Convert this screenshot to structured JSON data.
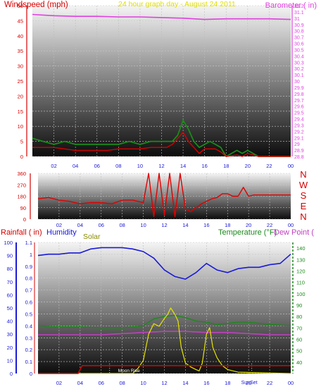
{
  "header": {
    "left": "Windspeed (mph)",
    "center": "24 hour graph day - August 24 2011",
    "right": "Barometer ( in)"
  },
  "colors": {
    "wind": "#d80000",
    "gust_bars": "#1a8a1a",
    "baro": "#e040e0",
    "dir": "#e00000",
    "humidity": "#1a1ad8",
    "solar": "#e6e600",
    "temp": "#1a8a1a",
    "dewpoint": "#c040c0",
    "rain": "#d80000",
    "rain_axis": "#1a1ad8",
    "time_labels": "#1a1ad8"
  },
  "chart_data": [
    {
      "id": "wind_baro",
      "type": "line",
      "title": "24 hour graph day - August 24 2011",
      "x_ticks": [
        "02",
        "04",
        "06",
        "08",
        "10",
        "12",
        "14",
        "16",
        "18",
        "20",
        "22",
        "00"
      ],
      "y_left": {
        "label": "Windspeed (mph)",
        "ticks": [
          0,
          5,
          10,
          15,
          20,
          25,
          30,
          35,
          40,
          45,
          50
        ],
        "lim": [
          0,
          50
        ]
      },
      "y_right": {
        "label": "Barometer ( in)",
        "ticks": [
          "28.8",
          "28.9",
          "29",
          "29.1",
          "29.2",
          "29.3",
          "29.4",
          "29.5",
          "29.6",
          "29.7",
          "29.8",
          "29.9",
          "30",
          "30.1",
          "30.2",
          "30.3",
          "30.4",
          "30.5",
          "30.6",
          "30.7",
          "30.8",
          "30.9",
          "31",
          "31.1",
          "31.2"
        ],
        "lim": [
          28.8,
          31.2
        ]
      },
      "series": [
        {
          "name": "Windspeed",
          "axis": "left",
          "x": [
            0,
            1,
            2,
            3,
            4,
            5,
            6,
            7,
            8,
            9,
            10,
            11,
            12,
            12.5,
            13,
            13.5,
            14,
            14.5,
            15,
            15.5,
            16,
            17,
            17.5,
            18,
            19,
            19.5,
            20,
            21,
            22,
            23,
            24
          ],
          "y": [
            3,
            3,
            3,
            2.5,
            2,
            2,
            2,
            2,
            2.5,
            2.5,
            2.5,
            3,
            3,
            3,
            4,
            6,
            8,
            5,
            3,
            1,
            2.5,
            2.5,
            1.5,
            0,
            0.5,
            0,
            1,
            0,
            0,
            0,
            0
          ]
        },
        {
          "name": "Gust",
          "axis": "left",
          "x": [
            0,
            1,
            2,
            3,
            4,
            5,
            6,
            7,
            8,
            9,
            10,
            11,
            12,
            13,
            13.5,
            14,
            14.5,
            15,
            15.5,
            16,
            16.5,
            17,
            17.5,
            18,
            19,
            19.5,
            20,
            21,
            22,
            23,
            24
          ],
          "y": [
            6,
            5,
            4,
            5,
            4,
            4,
            4,
            4,
            4,
            5,
            4,
            5,
            5,
            5,
            7,
            12,
            9,
            5,
            3,
            4,
            5,
            4,
            3,
            0,
            2,
            1,
            2,
            0,
            0,
            0,
            0
          ]
        },
        {
          "name": "Barometer",
          "axis": "right",
          "x": [
            0,
            2,
            4,
            6,
            8,
            10,
            12,
            14,
            16,
            18,
            20,
            22,
            24
          ],
          "y": [
            31.06,
            31.04,
            31.03,
            31.03,
            31.02,
            31.02,
            31.01,
            31.0,
            30.98,
            30.99,
            30.99,
            30.99,
            30.98
          ]
        }
      ]
    },
    {
      "id": "wind_direction",
      "type": "line",
      "x_ticks": [
        "02",
        "04",
        "06",
        "08",
        "10",
        "12",
        "14",
        "16",
        "18",
        "20",
        "22",
        "00"
      ],
      "y": {
        "ticks": [
          0,
          90,
          180,
          270,
          360
        ],
        "lim": [
          0,
          360
        ]
      },
      "compass": [
        "N",
        "W",
        "S",
        "E",
        "N"
      ],
      "series": [
        {
          "name": "Wind direction",
          "x": [
            0,
            1,
            2,
            3,
            4,
            5,
            6,
            7,
            8,
            9,
            10,
            10.5,
            11,
            11.5,
            12,
            12.5,
            13,
            13.5,
            14,
            14.5,
            15,
            15.5,
            16,
            16.5,
            17,
            17.5,
            18,
            18.5,
            19,
            19.5,
            20,
            20.5,
            21,
            22,
            23,
            24
          ],
          "y": [
            160,
            170,
            150,
            140,
            120,
            130,
            130,
            120,
            150,
            150,
            130,
            360,
            20,
            360,
            30,
            360,
            20,
            360,
            80,
            60,
            90,
            120,
            140,
            160,
            170,
            200,
            200,
            180,
            180,
            250,
            180,
            190,
            190,
            190,
            190,
            190
          ]
        }
      ]
    },
    {
      "id": "rain_hum_solar_temp",
      "type": "line",
      "x_ticks": [
        "02",
        "04",
        "06",
        "08",
        "10",
        "12",
        "14",
        "16",
        "18",
        "20",
        "22",
        "00"
      ],
      "y_rain": {
        "label": "Rainfall ( in)",
        "ticks": [
          0,
          10,
          20,
          30,
          40,
          50,
          60,
          70,
          80,
          90,
          100
        ],
        "lim": [
          0,
          100
        ]
      },
      "y_humidity": {
        "label": "Humidity",
        "ticks": [
          "0",
          "0.1",
          "0.2",
          "0.3",
          "0.4",
          "0.5",
          "0.6",
          "0.7",
          "0.8",
          "0.9",
          "1",
          "1.1"
        ],
        "lim": [
          0,
          1.1
        ]
      },
      "y_temp": {
        "label": "Temperature (°F)",
        "ticks": [
          40,
          50,
          60,
          70,
          80,
          90,
          100,
          110,
          120,
          130,
          140
        ],
        "lim": [
          30,
          145
        ]
      },
      "labels": {
        "solar": "Solar",
        "dewpoint": "Dew Point (",
        "moonrise": "Moon Rise",
        "sunset": "SunSet"
      },
      "annotations_x": {
        "moonrise": 6.8,
        "sunset": 20.3
      },
      "series": [
        {
          "name": "Humidity",
          "axis": "rain",
          "x": [
            0,
            1,
            2,
            3,
            4,
            5,
            6,
            7,
            8,
            9,
            10,
            11,
            12,
            13,
            14,
            15,
            16,
            17,
            18,
            19,
            20,
            21,
            22,
            23,
            24
          ],
          "y": [
            90,
            91,
            91,
            92,
            92,
            95,
            96,
            96,
            96,
            95,
            93,
            88,
            79,
            74,
            72,
            77,
            84,
            79,
            77,
            80,
            81,
            81,
            83,
            84,
            91
          ]
        },
        {
          "name": "Temperature",
          "axis": "temp",
          "x": [
            0,
            2,
            4,
            6,
            8,
            10,
            10.5,
            11,
            12,
            13,
            14,
            15,
            16,
            17,
            18,
            19,
            20,
            22,
            24
          ],
          "y": [
            72,
            71,
            71,
            70,
            70,
            72,
            75,
            78,
            80,
            81,
            79,
            76,
            75,
            73,
            74,
            75,
            75,
            73,
            72
          ]
        },
        {
          "name": "Dew Point",
          "axis": "temp",
          "x": [
            0,
            2,
            4,
            6,
            8,
            10,
            12,
            14,
            16,
            18,
            20,
            22,
            24
          ],
          "y": [
            64,
            64,
            64,
            64,
            65,
            66,
            67,
            67,
            66,
            66,
            65,
            64,
            64
          ]
        },
        {
          "name": "Solar",
          "axis": "rain",
          "x": [
            0,
            9,
            9.5,
            10,
            10.5,
            11,
            11.5,
            12,
            12.3,
            12.6,
            13,
            13.3,
            13.6,
            14,
            14.5,
            15,
            15.3,
            15.6,
            16,
            16.3,
            16.6,
            17,
            17.5,
            18,
            19,
            24
          ],
          "y": [
            0,
            0,
            4,
            10,
            30,
            38,
            36,
            42,
            45,
            50,
            45,
            40,
            20,
            8,
            5,
            3,
            2,
            8,
            30,
            35,
            20,
            12,
            6,
            3,
            1,
            0
          ]
        },
        {
          "name": "Rainfall",
          "axis": "rain",
          "x": [
            0,
            3.8,
            4.2,
            24
          ],
          "y": [
            0,
            0,
            6,
            6
          ]
        }
      ]
    }
  ]
}
